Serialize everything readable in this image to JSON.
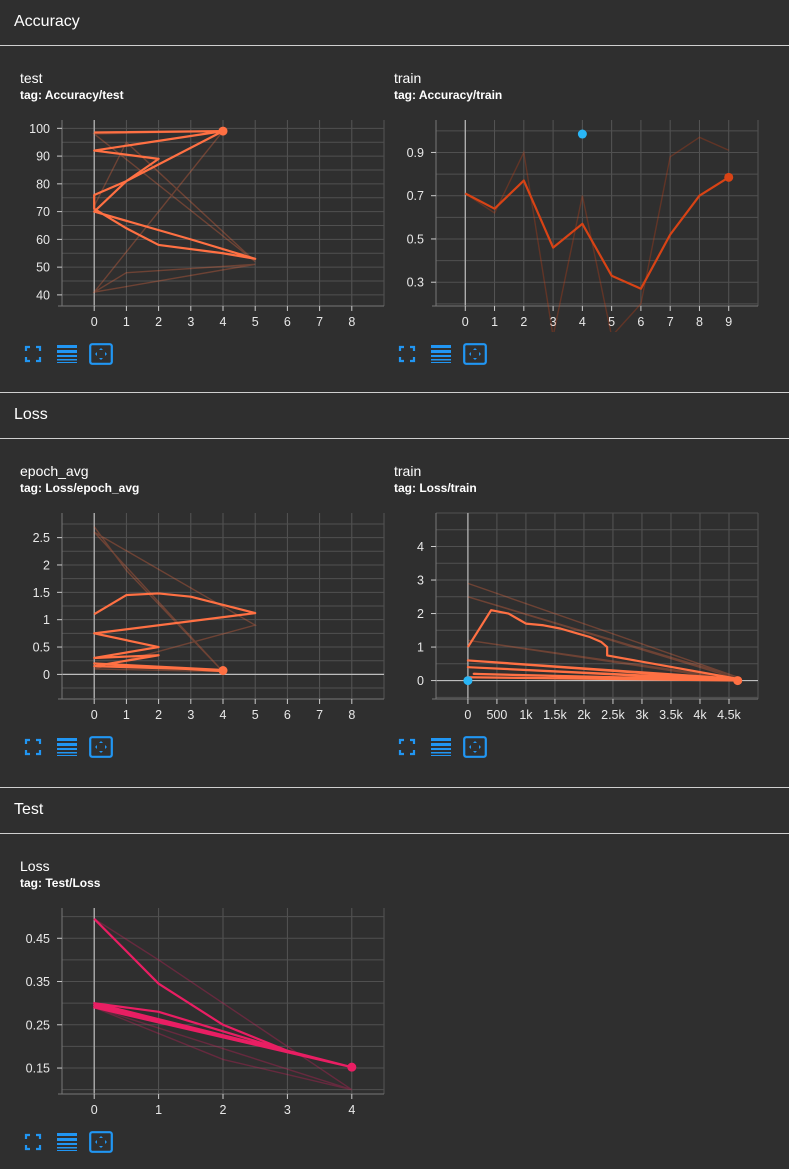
{
  "sections": [
    {
      "title": "Accuracy"
    },
    {
      "title": "Loss"
    },
    {
      "title": "Test"
    }
  ],
  "cards": [
    {
      "title": "test",
      "tag": "tag: Accuracy/test"
    },
    {
      "title": "train",
      "tag": "tag: Accuracy/train"
    },
    {
      "title": "epoch_avg",
      "tag": "tag: Loss/epoch_avg"
    },
    {
      "title": "train",
      "tag": "tag: Loss/train"
    },
    {
      "title": "Loss",
      "tag": "tag: Test/Loss"
    }
  ],
  "icons": {
    "fullscreen": "fullscreen-icon",
    "log_scale": "log-scale-icon",
    "fit_domain": "fit-domain-icon"
  },
  "colors": {
    "background": "#2f2f2f",
    "accent_blue": "#2196f3",
    "series_orange": "#ff7043",
    "series_darkorange": "#d84315",
    "series_pink": "#e91e63",
    "highlight_blue": "#29b6f6"
  },
  "chart_data": [
    {
      "type": "line",
      "xticks": [
        "0",
        "1",
        "2",
        "3",
        "4",
        "5",
        "6",
        "7",
        "8"
      ],
      "yticks": [
        "40",
        "50",
        "60",
        "70",
        "80",
        "90",
        "100"
      ],
      "xlim": [
        -1,
        9
      ],
      "ylim": [
        36,
        103
      ],
      "color": "#ff7043",
      "smoothed": [
        [
          0,
          98.5
        ],
        [
          4,
          99
        ],
        [
          0,
          92
        ],
        [
          2,
          89
        ],
        [
          1,
          81
        ],
        [
          0,
          76
        ],
        [
          0,
          71
        ],
        [
          1,
          64
        ],
        [
          2,
          58
        ],
        [
          4,
          55
        ],
        [
          5,
          53
        ],
        [
          3,
          60
        ],
        [
          0,
          70
        ],
        [
          1,
          81
        ],
        [
          4,
          99
        ]
      ],
      "raw": [
        [
          0,
          41
        ],
        [
          1,
          48
        ],
        [
          5,
          51
        ],
        [
          0,
          41
        ],
        [
          4,
          99
        ],
        [
          0,
          98
        ],
        [
          5,
          52
        ],
        [
          1,
          95
        ],
        [
          0,
          72
        ]
      ],
      "marker": [
        4,
        99
      ]
    },
    {
      "type": "line",
      "xticks": [
        "0",
        "1",
        "2",
        "3",
        "4",
        "5",
        "6",
        "7",
        "8",
        "9"
      ],
      "yticks": [
        "0.3",
        "0.5",
        "0.7",
        "0.9"
      ],
      "xlim": [
        -1,
        10
      ],
      "ylim": [
        0.19,
        1.05
      ],
      "color": "#d84315",
      "smoothed": [
        [
          0,
          0.71
        ],
        [
          1,
          0.64
        ],
        [
          2,
          0.77
        ],
        [
          3,
          0.46
        ],
        [
          4,
          0.57
        ],
        [
          5,
          0.33
        ],
        [
          6,
          0.27
        ],
        [
          7,
          0.52
        ],
        [
          8,
          0.7
        ],
        [
          9,
          0.785
        ]
      ],
      "raw": [
        [
          0,
          0.71
        ],
        [
          1,
          0.62
        ],
        [
          2,
          0.9
        ],
        [
          3,
          0.05
        ],
        [
          4,
          0.7
        ],
        [
          5,
          0.05
        ],
        [
          6,
          0.2
        ],
        [
          7,
          0.88
        ],
        [
          8,
          0.97
        ],
        [
          9,
          0.91
        ]
      ],
      "marker": [
        9,
        0.785
      ],
      "point": [
        4,
        0.985
      ]
    },
    {
      "type": "line",
      "xticks": [
        "0",
        "1",
        "2",
        "3",
        "4",
        "5",
        "6",
        "7",
        "8"
      ],
      "yticks": [
        "0",
        "0.5",
        "1",
        "1.5",
        "2",
        "2.5"
      ],
      "xlim": [
        -1,
        9
      ],
      "ylim": [
        -0.45,
        2.95
      ],
      "color": "#ff7043",
      "smoothed": [
        [
          0,
          1.1
        ],
        [
          1,
          1.45
        ],
        [
          2,
          1.48
        ],
        [
          3,
          1.42
        ],
        [
          5,
          1.12
        ],
        [
          0,
          0.75
        ],
        [
          2,
          0.5
        ],
        [
          0,
          0.3
        ],
        [
          2,
          0.35
        ],
        [
          1,
          0.25
        ],
        [
          0,
          0.15
        ],
        [
          4,
          0.08
        ],
        [
          0,
          0.2
        ],
        [
          4,
          0.06
        ]
      ],
      "raw": [
        [
          0,
          2.7
        ],
        [
          1,
          1.9
        ],
        [
          4,
          0.05
        ],
        [
          0,
          2.6
        ],
        [
          5,
          0.9
        ],
        [
          0,
          0.1
        ],
        [
          4,
          0.05
        ]
      ],
      "marker": [
        4,
        0.07
      ]
    },
    {
      "type": "line",
      "xticks": [
        "0",
        "500",
        "1k",
        "1.5k",
        "2k",
        "2.5k",
        "3k",
        "3.5k",
        "4k",
        "4.5k"
      ],
      "yticks": [
        "0",
        "1",
        "2",
        "3",
        "4"
      ],
      "xlim": [
        -550,
        5000
      ],
      "ylim": [
        -0.55,
        5.0
      ],
      "color": "#ff7043",
      "smoothed": [
        [
          0,
          1.0
        ],
        [
          400,
          2.1
        ],
        [
          700,
          2.0
        ],
        [
          900,
          1.8
        ],
        [
          1000,
          1.7
        ],
        [
          1300,
          1.65
        ],
        [
          1600,
          1.55
        ],
        [
          1900,
          1.4
        ],
        [
          2100,
          1.3
        ],
        [
          2300,
          1.15
        ],
        [
          2400,
          1.0
        ],
        [
          2400,
          0.75
        ],
        [
          4650,
          0.05
        ],
        [
          0,
          0.6
        ],
        [
          4650,
          0.02
        ],
        [
          0,
          0.4
        ],
        [
          4650,
          0.0
        ],
        [
          100,
          0.2
        ],
        [
          4650,
          0.01
        ],
        [
          0,
          0.1
        ],
        [
          4650,
          0.0
        ]
      ],
      "raw": [
        [
          0,
          2.9
        ],
        [
          4650,
          0.1
        ],
        [
          0,
          2.5
        ],
        [
          4650,
          0.05
        ],
        [
          0,
          1.2
        ],
        [
          4650,
          0.0
        ]
      ],
      "marker": [
        4650,
        0.0
      ],
      "point": [
        0,
        0.0
      ]
    },
    {
      "type": "line",
      "xticks": [
        "0",
        "1",
        "2",
        "3",
        "4"
      ],
      "yticks": [
        "0.15",
        "0.25",
        "0.35",
        "0.45"
      ],
      "xlim": [
        -0.5,
        4.5
      ],
      "ylim": [
        0.09,
        0.52
      ],
      "color": "#e91e63",
      "smoothed": [
        [
          0,
          0.495
        ],
        [
          1,
          0.345
        ],
        [
          2,
          0.25
        ],
        [
          3,
          0.19
        ],
        [
          4,
          0.152
        ],
        [
          0,
          0.3
        ],
        [
          1,
          0.28
        ],
        [
          2,
          0.235
        ],
        [
          3,
          0.19
        ],
        [
          4,
          0.152
        ],
        [
          0,
          0.295
        ],
        [
          2,
          0.225
        ],
        [
          4,
          0.152
        ],
        [
          0,
          0.29
        ],
        [
          4,
          0.152
        ]
      ],
      "raw": [
        [
          0,
          0.495
        ],
        [
          1,
          0.4
        ],
        [
          4,
          0.1
        ],
        [
          0,
          0.29
        ],
        [
          2,
          0.17
        ],
        [
          4,
          0.1
        ]
      ],
      "marker": [
        4,
        0.152
      ]
    }
  ]
}
